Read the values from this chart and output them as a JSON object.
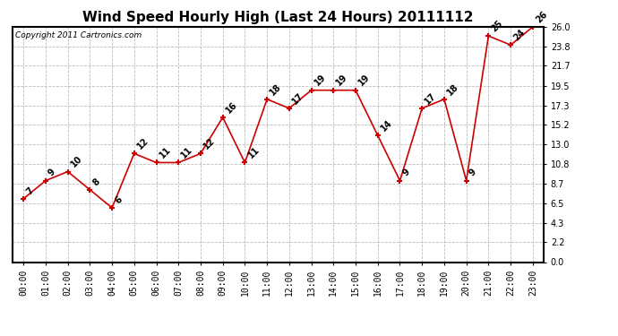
{
  "title": "Wind Speed Hourly High (Last 24 Hours) 20111112",
  "copyright": "Copyright 2011 Cartronics.com",
  "hours": [
    "00:00",
    "01:00",
    "02:00",
    "03:00",
    "04:00",
    "05:00",
    "06:00",
    "07:00",
    "08:00",
    "09:00",
    "10:00",
    "11:00",
    "12:00",
    "13:00",
    "14:00",
    "15:00",
    "16:00",
    "17:00",
    "18:00",
    "19:00",
    "20:00",
    "21:00",
    "22:00",
    "23:00"
  ],
  "values": [
    7,
    9,
    10,
    8,
    6,
    12,
    11,
    11,
    12,
    16,
    11,
    18,
    17,
    19,
    19,
    19,
    14,
    9,
    17,
    18,
    9,
    25,
    24,
    26
  ],
  "ylim": [
    0.0,
    26.0
  ],
  "yticks": [
    0.0,
    2.2,
    4.3,
    6.5,
    8.7,
    10.8,
    13.0,
    15.2,
    17.3,
    19.5,
    21.7,
    23.8,
    26.0
  ],
  "line_color": "#cc0000",
  "marker_color": "#cc0000",
  "bg_color": "#ffffff",
  "grid_color": "#bbbbbb",
  "title_fontsize": 11,
  "label_fontsize": 7,
  "annotation_fontsize": 7
}
